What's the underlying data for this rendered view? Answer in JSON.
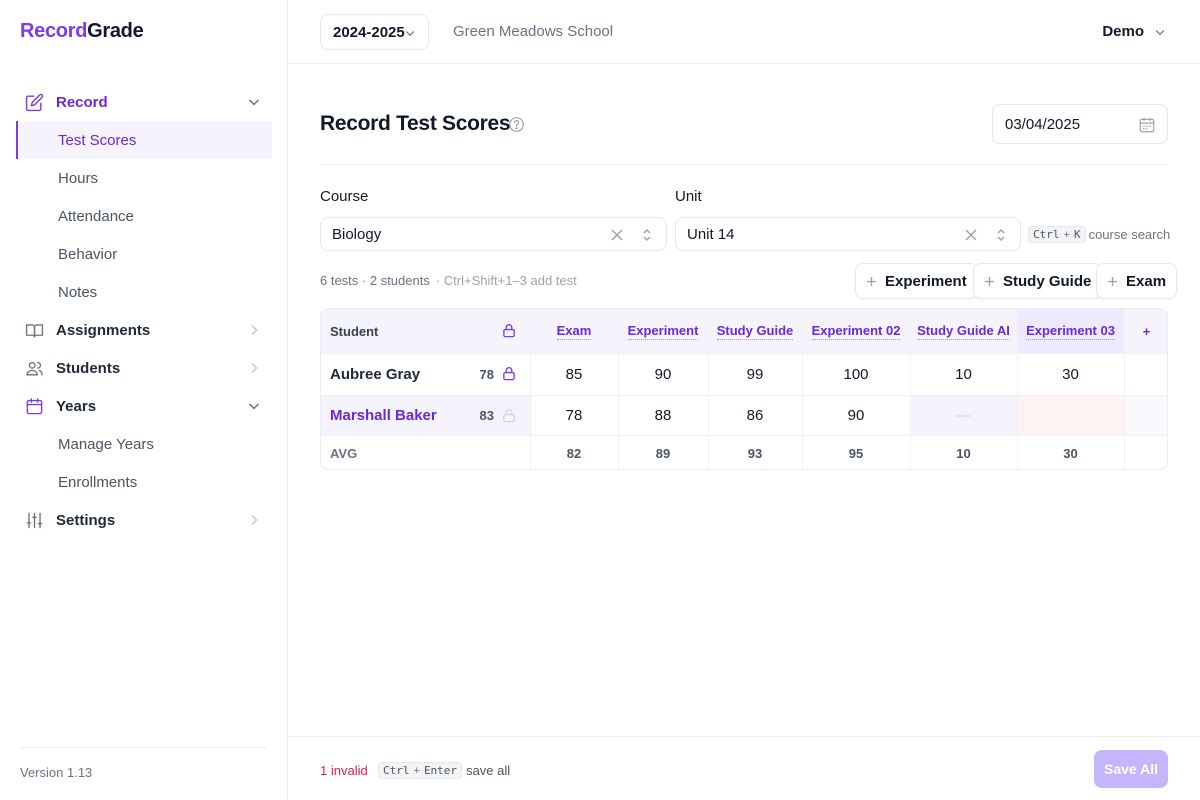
{
  "app": {
    "brand_part1": "Record",
    "brand_part2": "Grade",
    "version": "Version 1.13"
  },
  "sidebar": {
    "items": [
      {
        "label": "Record",
        "icon": "edit-icon",
        "expanded": true
      },
      {
        "label": "Test Scores"
      },
      {
        "label": "Hours"
      },
      {
        "label": "Attendance"
      },
      {
        "label": "Behavior"
      },
      {
        "label": "Notes"
      },
      {
        "label": "Assignments",
        "icon": "book-icon"
      },
      {
        "label": "Students",
        "icon": "users-icon"
      },
      {
        "label": "Years",
        "icon": "calendar-icon",
        "expanded": true
      },
      {
        "label": "Manage Years"
      },
      {
        "label": "Enrollments"
      },
      {
        "label": "Settings",
        "icon": "sliders-icon"
      }
    ]
  },
  "topbar": {
    "year": "2024-2025",
    "school": "Green Meadows School",
    "user": "Demo"
  },
  "main": {
    "title": "Record Test Scores",
    "date": "03/04/2025",
    "course_label": "Course",
    "course_value": "Biology",
    "unit_label": "Unit",
    "unit_value": "Unit 14",
    "search_hint": {
      "key1": "Ctrl",
      "plus": "+",
      "key2": "K",
      "text": "course search"
    },
    "meta": "6 tests · 2 students",
    "meta_hint": "· Ctrl+Shift+1–3 add test",
    "add_buttons": [
      "Experiment",
      "Study Guide",
      "Exam"
    ]
  },
  "table": {
    "student_header": "Student",
    "columns": [
      "Exam",
      "Experiment",
      "Study Guide",
      "Experiment 02",
      "Study Guide AI",
      "Experiment 03"
    ],
    "add_column": "+",
    "rows": [
      {
        "name": "Aubree Gray",
        "avg": "78",
        "scores": [
          "85",
          "90",
          "99",
          "100",
          "10",
          "30"
        ]
      },
      {
        "name": "Marshall Baker",
        "avg": "83",
        "scores": [
          "78",
          "88",
          "86",
          "90",
          "—",
          ""
        ]
      }
    ],
    "avg_label": "AVG",
    "averages": [
      "82",
      "89",
      "93",
      "95",
      "10",
      "30"
    ]
  },
  "footer": {
    "invalid": "1 invalid",
    "key1": "Ctrl",
    "plus": "+",
    "key2": "Enter",
    "hint": "save all",
    "save_label": "Save All"
  },
  "colors": {
    "accent": "#7c3aed",
    "invalid": "#e11d48",
    "save_disabled": "#c4b5fd"
  }
}
